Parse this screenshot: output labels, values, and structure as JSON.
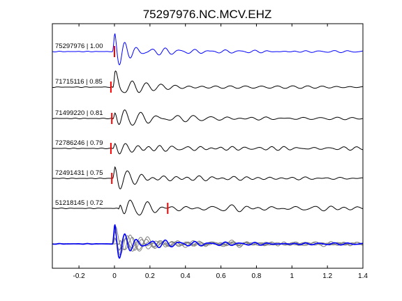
{
  "chart_data": {
    "type": "line",
    "title": "75297976.NC.MCV.EHZ",
    "xlabel": "",
    "ylabel": "",
    "xlim": [
      -0.35,
      1.4
    ],
    "x_ticks": [
      -0.2,
      0,
      0.2,
      0.4,
      0.6,
      0.8,
      1,
      1.2,
      1.4
    ],
    "x_tick_labels": [
      "-0.2",
      "0",
      "0.2",
      "0.4",
      "0.6",
      "0.8",
      "1",
      "1.2",
      "1.4"
    ],
    "grid": false,
    "colors": {
      "reference": "#0000ff",
      "trace": "#000000",
      "pick": "#ff0000",
      "stack_other": "#808080"
    },
    "series": [
      {
        "label": "75297976 | 1.00",
        "pick_time": 0.0,
        "color": "#0000ff",
        "onset": -0.01,
        "period": 0.07,
        "decay": 1.3,
        "seed": 1,
        "amplitude": 1.0
      },
      {
        "label": "71715116 | 0.85",
        "pick_time": -0.02,
        "color": "#000000",
        "onset": -0.01,
        "period": 0.075,
        "decay": 1.0,
        "seed": 2,
        "amplitude": 1.0
      },
      {
        "label": "71499220 | 0.81",
        "pick_time": -0.015,
        "color": "#000000",
        "onset": -0.01,
        "period": 0.075,
        "decay": 1.0,
        "seed": 3,
        "amplitude": 1.0
      },
      {
        "label": "72786246 | 0.79",
        "pick_time": -0.02,
        "color": "#000000",
        "onset": -0.01,
        "period": 0.07,
        "decay": 1.0,
        "seed": 4,
        "amplitude": 1.0
      },
      {
        "label": "72491431 | 0.75",
        "pick_time": -0.015,
        "color": "#000000",
        "onset": -0.01,
        "period": 0.075,
        "decay": 0.9,
        "seed": 5,
        "amplitude": 1.0
      },
      {
        "label": "51218145 | 0.72",
        "pick_time": 0.3,
        "color": "#000000",
        "onset": 0.02,
        "period": 0.085,
        "decay": 0.4,
        "seed": 6,
        "amplitude": 1.0
      }
    ],
    "stack": {
      "label": "",
      "n_traces": 6
    }
  }
}
